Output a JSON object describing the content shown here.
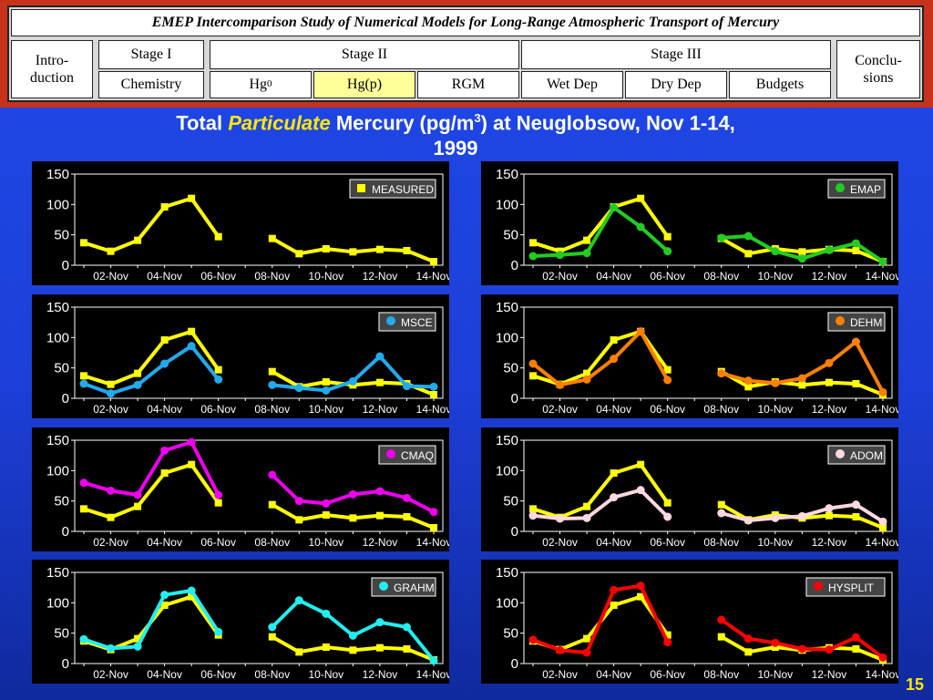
{
  "nav": {
    "title": "EMEP Intercomparison Study of Numerical Models for Long-Range Atmospheric Transport of Mercury",
    "intro_line1": "Intro-",
    "intro_line2": "duction",
    "stage1": "Stage I",
    "stage2": "Stage II",
    "stage3": "Stage III",
    "concl_line1": "Conclu-",
    "concl_line2": "sions",
    "chemistry": "Chemistry",
    "hg0": "Hg",
    "hg0_sup": "0",
    "hgp": "Hg(p)",
    "rgm": "RGM",
    "wetdep": "Wet Dep",
    "drydep": "Dry Dep",
    "budgets": "Budgets"
  },
  "page": {
    "title_part1": "Total ",
    "title_emph": "Particulate",
    "title_part2": " Mercury (pg/m",
    "title_sup": "3",
    "title_part3": ") at Neuglobsow, Nov 1-14,",
    "title_line2": "1999",
    "page_number": "15"
  },
  "colors": {
    "measured": "#ffff00",
    "emap": "#22cc22",
    "msce": "#22aaee",
    "dehm": "#ff8000",
    "cmaq": "#ee00ee",
    "adom": "#ffd8e0",
    "grahm": "#22eeee",
    "hysplit": "#ff0000"
  },
  "chart_data": [
    {
      "type": "line",
      "legend": "MEASURED",
      "color": "#ffff00",
      "x": [
        "01-Nov",
        "02-Nov",
        "03-Nov",
        "04-Nov",
        "05-Nov",
        "06-Nov",
        "07-Nov",
        "08-Nov",
        "09-Nov",
        "10-Nov",
        "11-Nov",
        "12-Nov",
        "13-Nov",
        "14-Nov"
      ],
      "x_ticks": [
        "02-Nov",
        "04-Nov",
        "06-Nov",
        "08-Nov",
        "10-Nov",
        "12-Nov",
        "14-Nov"
      ],
      "y_ticks": [
        "0",
        "50",
        "100",
        "150"
      ],
      "ylim": [
        0,
        150
      ],
      "series": [
        {
          "values": [
            37,
            23,
            41,
            96,
            110,
            47,
            null,
            44,
            19,
            27,
            22,
            26,
            24,
            6
          ],
          "marker": "square"
        }
      ]
    },
    {
      "type": "line",
      "legend": "EMAP",
      "color": "#22cc22",
      "x": [
        "01-Nov",
        "02-Nov",
        "03-Nov",
        "04-Nov",
        "05-Nov",
        "06-Nov",
        "07-Nov",
        "08-Nov",
        "09-Nov",
        "10-Nov",
        "11-Nov",
        "12-Nov",
        "13-Nov",
        "14-Nov"
      ],
      "x_ticks": [
        "02-Nov",
        "04-Nov",
        "06-Nov",
        "08-Nov",
        "10-Nov",
        "12-Nov",
        "14-Nov"
      ],
      "y_ticks": [
        "0",
        "50",
        "100",
        "150"
      ],
      "ylim": [
        0,
        150
      ],
      "series": [
        {
          "values": [
            37,
            23,
            41,
            96,
            110,
            47,
            null,
            44,
            19,
            27,
            22,
            26,
            24,
            6
          ],
          "marker": "square",
          "color": "#ffff00"
        },
        {
          "values": [
            15,
            17,
            20,
            95,
            63,
            23,
            null,
            45,
            48,
            23,
            11,
            25,
            36,
            6
          ],
          "marker": "circle",
          "color": "#22cc22"
        }
      ]
    },
    {
      "type": "line",
      "legend": "MSCE",
      "color": "#22aaee",
      "x": [
        "01-Nov",
        "02-Nov",
        "03-Nov",
        "04-Nov",
        "05-Nov",
        "06-Nov",
        "07-Nov",
        "08-Nov",
        "09-Nov",
        "10-Nov",
        "11-Nov",
        "12-Nov",
        "13-Nov",
        "14-Nov"
      ],
      "x_ticks": [
        "02-Nov",
        "04-Nov",
        "06-Nov",
        "08-Nov",
        "10-Nov",
        "12-Nov",
        "14-Nov"
      ],
      "y_ticks": [
        "0",
        "50",
        "100",
        "150"
      ],
      "ylim": [
        0,
        150
      ],
      "series": [
        {
          "values": [
            37,
            23,
            41,
            96,
            110,
            47,
            null,
            44,
            19,
            27,
            22,
            26,
            24,
            6
          ],
          "marker": "square",
          "color": "#ffff00"
        },
        {
          "values": [
            24,
            8,
            22,
            57,
            86,
            31,
            null,
            22,
            17,
            13,
            28,
            69,
            20,
            19
          ],
          "marker": "circle",
          "color": "#22aaee"
        }
      ]
    },
    {
      "type": "line",
      "legend": "DEHM",
      "color": "#ff8000",
      "x": [
        "01-Nov",
        "02-Nov",
        "03-Nov",
        "04-Nov",
        "05-Nov",
        "06-Nov",
        "07-Nov",
        "08-Nov",
        "09-Nov",
        "10-Nov",
        "11-Nov",
        "12-Nov",
        "13-Nov",
        "14-Nov"
      ],
      "x_ticks": [
        "02-Nov",
        "04-Nov",
        "06-Nov",
        "08-Nov",
        "10-Nov",
        "12-Nov",
        "14-Nov"
      ],
      "y_ticks": [
        "0",
        "50",
        "100",
        "150"
      ],
      "ylim": [
        0,
        150
      ],
      "series": [
        {
          "values": [
            37,
            23,
            41,
            96,
            110,
            47,
            null,
            44,
            19,
            27,
            22,
            26,
            24,
            6
          ],
          "marker": "square",
          "color": "#ffff00"
        },
        {
          "values": [
            57,
            22,
            31,
            65,
            110,
            30,
            null,
            41,
            29,
            25,
            33,
            58,
            93,
            10
          ],
          "marker": "circle",
          "color": "#ff8000"
        }
      ]
    },
    {
      "type": "line",
      "legend": "CMAQ",
      "color": "#ee00ee",
      "x": [
        "01-Nov",
        "02-Nov",
        "03-Nov",
        "04-Nov",
        "05-Nov",
        "06-Nov",
        "07-Nov",
        "08-Nov",
        "09-Nov",
        "10-Nov",
        "11-Nov",
        "12-Nov",
        "13-Nov",
        "14-Nov"
      ],
      "x_ticks": [
        "02-Nov",
        "04-Nov",
        "06-Nov",
        "08-Nov",
        "10-Nov",
        "12-Nov",
        "14-Nov"
      ],
      "y_ticks": [
        "0",
        "50",
        "100",
        "150"
      ],
      "ylim": [
        0,
        150
      ],
      "series": [
        {
          "values": [
            37,
            23,
            41,
            96,
            110,
            47,
            null,
            44,
            19,
            27,
            22,
            26,
            24,
            6
          ],
          "marker": "square",
          "color": "#ffff00"
        },
        {
          "values": [
            80,
            67,
            60,
            133,
            147,
            60,
            null,
            93,
            50,
            46,
            61,
            66,
            55,
            32
          ],
          "marker": "circle",
          "color": "#ee00ee"
        }
      ]
    },
    {
      "type": "line",
      "legend": "ADOM",
      "color": "#ffd8e0",
      "x": [
        "01-Nov",
        "02-Nov",
        "03-Nov",
        "04-Nov",
        "05-Nov",
        "06-Nov",
        "07-Nov",
        "08-Nov",
        "09-Nov",
        "10-Nov",
        "11-Nov",
        "12-Nov",
        "13-Nov",
        "14-Nov"
      ],
      "x_ticks": [
        "02-Nov",
        "04-Nov",
        "06-Nov",
        "08-Nov",
        "10-Nov",
        "12-Nov",
        "14-Nov"
      ],
      "y_ticks": [
        "0",
        "50",
        "100",
        "150"
      ],
      "ylim": [
        0,
        150
      ],
      "series": [
        {
          "values": [
            37,
            23,
            41,
            96,
            110,
            47,
            null,
            44,
            19,
            27,
            22,
            26,
            24,
            6
          ],
          "marker": "square",
          "color": "#ffff00"
        },
        {
          "values": [
            26,
            21,
            22,
            56,
            68,
            24,
            null,
            30,
            18,
            22,
            25,
            38,
            44,
            16
          ],
          "marker": "circle",
          "color": "#ffd8e0"
        }
      ]
    },
    {
      "type": "line",
      "legend": "GRAHM",
      "color": "#22eeee",
      "x": [
        "01-Nov",
        "02-Nov",
        "03-Nov",
        "04-Nov",
        "05-Nov",
        "06-Nov",
        "07-Nov",
        "08-Nov",
        "09-Nov",
        "10-Nov",
        "11-Nov",
        "12-Nov",
        "13-Nov",
        "14-Nov"
      ],
      "x_ticks": [
        "02-Nov",
        "04-Nov",
        "06-Nov",
        "08-Nov",
        "10-Nov",
        "12-Nov",
        "14-Nov"
      ],
      "y_ticks": [
        "0",
        "50",
        "100",
        "150"
      ],
      "ylim": [
        0,
        150
      ],
      "series": [
        {
          "values": [
            37,
            23,
            41,
            96,
            110,
            47,
            null,
            44,
            19,
            27,
            22,
            26,
            24,
            6
          ],
          "marker": "square",
          "color": "#ffff00"
        },
        {
          "values": [
            40,
            25,
            28,
            113,
            120,
            52,
            null,
            60,
            104,
            82,
            46,
            68,
            60,
            5
          ],
          "marker": "circle",
          "color": "#22eeee"
        }
      ]
    },
    {
      "type": "line",
      "legend": "HYSPLIT",
      "color": "#ff0000",
      "x": [
        "01-Nov",
        "02-Nov",
        "03-Nov",
        "04-Nov",
        "05-Nov",
        "06-Nov",
        "07-Nov",
        "08-Nov",
        "09-Nov",
        "10-Nov",
        "11-Nov",
        "12-Nov",
        "13-Nov",
        "14-Nov"
      ],
      "x_ticks": [
        "02-Nov",
        "04-Nov",
        "06-Nov",
        "08-Nov",
        "10-Nov",
        "12-Nov",
        "14-Nov"
      ],
      "y_ticks": [
        "0",
        "50",
        "100",
        "150"
      ],
      "ylim": [
        0,
        150
      ],
      "series": [
        {
          "values": [
            37,
            23,
            41,
            96,
            110,
            47,
            null,
            44,
            19,
            27,
            22,
            26,
            24,
            6
          ],
          "marker": "square",
          "color": "#ffff00"
        },
        {
          "values": [
            39,
            22,
            18,
            121,
            128,
            35,
            null,
            72,
            41,
            34,
            24,
            23,
            43,
            10
          ],
          "marker": "circle",
          "color": "#ff0000"
        }
      ]
    }
  ]
}
